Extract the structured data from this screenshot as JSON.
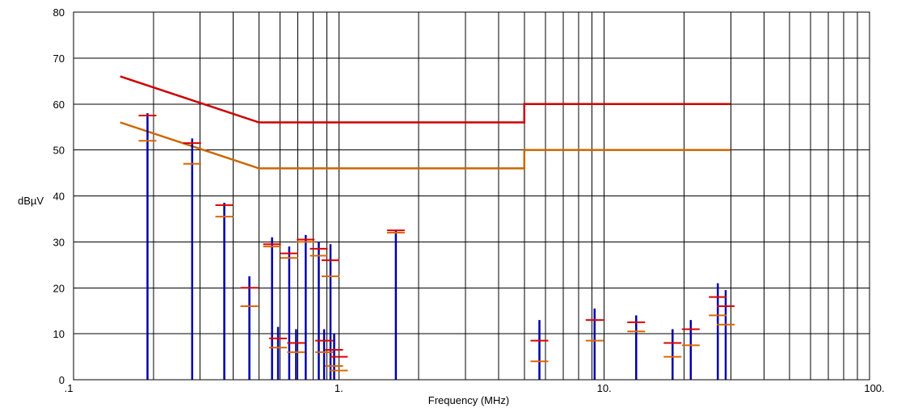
{
  "chart_data": {
    "type": "line",
    "xlabel": "Frequency (MHz)",
    "ylabel": "dBµV",
    "x_scale": "log",
    "xlim": [
      0.1,
      100
    ],
    "ylim": [
      0,
      80
    ],
    "grid": true,
    "x_ticks": [
      {
        "value": 0.1,
        "label": ".1"
      },
      {
        "value": 1,
        "label": "1."
      },
      {
        "value": 10,
        "label": "10."
      },
      {
        "value": 100,
        "label": "100."
      }
    ],
    "y_ticks": [
      0,
      10,
      20,
      30,
      40,
      50,
      60,
      70,
      80
    ],
    "colors": {
      "quasi_peak_limit": "#cc0000",
      "average_limit": "#cc6600",
      "peak": "#0000aa",
      "qp_marker": "#dd0000",
      "avg_marker": "#dd6600",
      "grid": "#000000"
    },
    "limit_lines": [
      {
        "id": "quasi_peak_limit",
        "points": [
          [
            0.15,
            66
          ],
          [
            0.5,
            56
          ],
          [
            5,
            56
          ],
          [
            5,
            60
          ],
          [
            30,
            60
          ]
        ]
      },
      {
        "id": "average_limit",
        "points": [
          [
            0.15,
            56
          ],
          [
            0.5,
            46
          ],
          [
            5,
            46
          ],
          [
            5,
            50
          ],
          [
            30,
            50
          ]
        ]
      }
    ],
    "peaks": [
      {
        "x": 0.19,
        "y": 58
      },
      {
        "x": 0.28,
        "y": 52.5
      },
      {
        "x": 0.37,
        "y": 38.5
      },
      {
        "x": 0.46,
        "y": 22.5
      },
      {
        "x": 0.56,
        "y": 31
      },
      {
        "x": 0.59,
        "y": 11.5
      },
      {
        "x": 0.65,
        "y": 29
      },
      {
        "x": 0.69,
        "y": 11
      },
      {
        "x": 0.75,
        "y": 31.5
      },
      {
        "x": 0.84,
        "y": 30
      },
      {
        "x": 0.88,
        "y": 11
      },
      {
        "x": 0.93,
        "y": 29.5
      },
      {
        "x": 0.96,
        "y": 10
      },
      {
        "x": 1.64,
        "y": 32.5
      },
      {
        "x": 5.7,
        "y": 13
      },
      {
        "x": 9.2,
        "y": 15.5
      },
      {
        "x": 13.2,
        "y": 14
      },
      {
        "x": 18.1,
        "y": 11
      },
      {
        "x": 21.2,
        "y": 13
      },
      {
        "x": 26.8,
        "y": 21
      },
      {
        "x": 28.7,
        "y": 19.5
      }
    ],
    "quasi_peak_markers": [
      {
        "x": 0.19,
        "y": 57.5
      },
      {
        "x": 0.28,
        "y": 51.5
      },
      {
        "x": 0.37,
        "y": 38
      },
      {
        "x": 0.46,
        "y": 20
      },
      {
        "x": 0.56,
        "y": 29.5
      },
      {
        "x": 0.59,
        "y": 9
      },
      {
        "x": 0.65,
        "y": 27.5
      },
      {
        "x": 0.69,
        "y": 8
      },
      {
        "x": 0.75,
        "y": 30.5
      },
      {
        "x": 0.84,
        "y": 28.5
      },
      {
        "x": 0.88,
        "y": 8.5
      },
      {
        "x": 0.93,
        "y": 26
      },
      {
        "x": 0.96,
        "y": 6.5
      },
      {
        "x": 1.0,
        "y": 5
      },
      {
        "x": 1.64,
        "y": 32.5
      },
      {
        "x": 5.7,
        "y": 8.5
      },
      {
        "x": 9.2,
        "y": 13
      },
      {
        "x": 13.2,
        "y": 12.5
      },
      {
        "x": 18.1,
        "y": 8
      },
      {
        "x": 21.2,
        "y": 11
      },
      {
        "x": 26.8,
        "y": 18
      },
      {
        "x": 28.7,
        "y": 16
      }
    ],
    "average_markers": [
      {
        "x": 0.19,
        "y": 52
      },
      {
        "x": 0.28,
        "y": 47
      },
      {
        "x": 0.37,
        "y": 35.5
      },
      {
        "x": 0.46,
        "y": 16
      },
      {
        "x": 0.56,
        "y": 29
      },
      {
        "x": 0.59,
        "y": 7
      },
      {
        "x": 0.65,
        "y": 26.5
      },
      {
        "x": 0.69,
        "y": 6
      },
      {
        "x": 0.75,
        "y": 30
      },
      {
        "x": 0.84,
        "y": 27
      },
      {
        "x": 0.88,
        "y": 6
      },
      {
        "x": 0.93,
        "y": 22.5
      },
      {
        "x": 0.96,
        "y": 3
      },
      {
        "x": 1.0,
        "y": 2
      },
      {
        "x": 1.64,
        "y": 32
      },
      {
        "x": 5.7,
        "y": 4
      },
      {
        "x": 9.2,
        "y": 8.5
      },
      {
        "x": 13.2,
        "y": 10.5
      },
      {
        "x": 18.1,
        "y": 5
      },
      {
        "x": 21.2,
        "y": 7.5
      },
      {
        "x": 26.8,
        "y": 14
      },
      {
        "x": 28.7,
        "y": 12
      }
    ]
  }
}
